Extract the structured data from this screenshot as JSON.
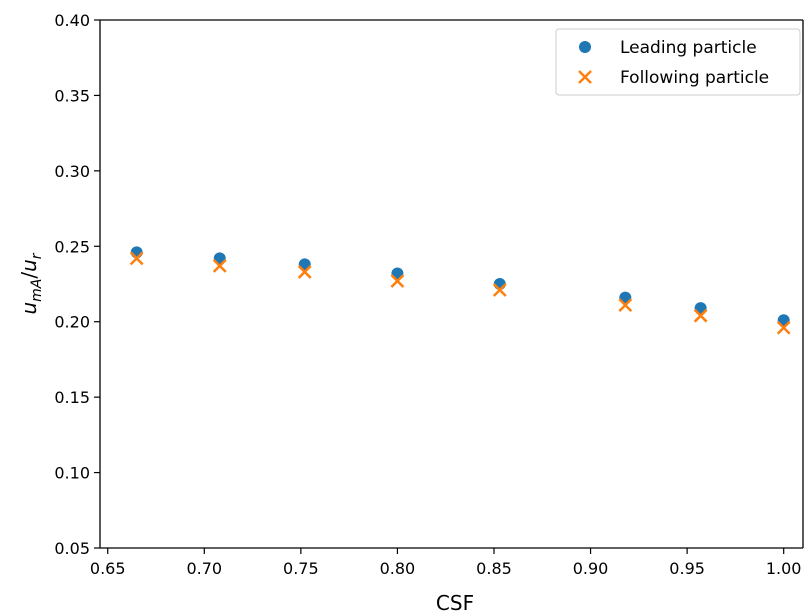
{
  "chart_data": {
    "type": "scatter",
    "xlabel": "CSF",
    "ylabel_main": "u",
    "ylabel_sub1": "mA",
    "ylabel_slash": "/",
    "ylabel_main2": "u",
    "ylabel_sub2": "r",
    "xlim": [
      0.646,
      1.01
    ],
    "ylim": [
      0.05,
      0.4
    ],
    "xticks": [
      0.65,
      0.7,
      0.75,
      0.8,
      0.85,
      0.9,
      0.95,
      1.0
    ],
    "xtick_labels": [
      "0.65",
      "0.70",
      "0.75",
      "0.80",
      "0.85",
      "0.90",
      "0.95",
      "1.00"
    ],
    "yticks": [
      0.05,
      0.1,
      0.15,
      0.2,
      0.25,
      0.3,
      0.35,
      0.4
    ],
    "ytick_labels": [
      "0.05",
      "0.10",
      "0.15",
      "0.20",
      "0.25",
      "0.30",
      "0.35",
      "0.40"
    ],
    "legend_position": "top-right",
    "grid": false,
    "series": [
      {
        "name": "Leading particle",
        "marker": "circle",
        "color": "#1f77b4",
        "x": [
          0.665,
          0.708,
          0.752,
          0.8,
          0.853,
          0.918,
          0.957,
          1.0
        ],
        "y": [
          0.246,
          0.242,
          0.238,
          0.232,
          0.225,
          0.216,
          0.209,
          0.201
        ]
      },
      {
        "name": "Following particle",
        "marker": "x",
        "color": "#ff7f0e",
        "x": [
          0.665,
          0.708,
          0.752,
          0.8,
          0.853,
          0.918,
          0.957,
          1.0
        ],
        "y": [
          0.242,
          0.237,
          0.233,
          0.227,
          0.221,
          0.211,
          0.204,
          0.196
        ]
      }
    ]
  }
}
